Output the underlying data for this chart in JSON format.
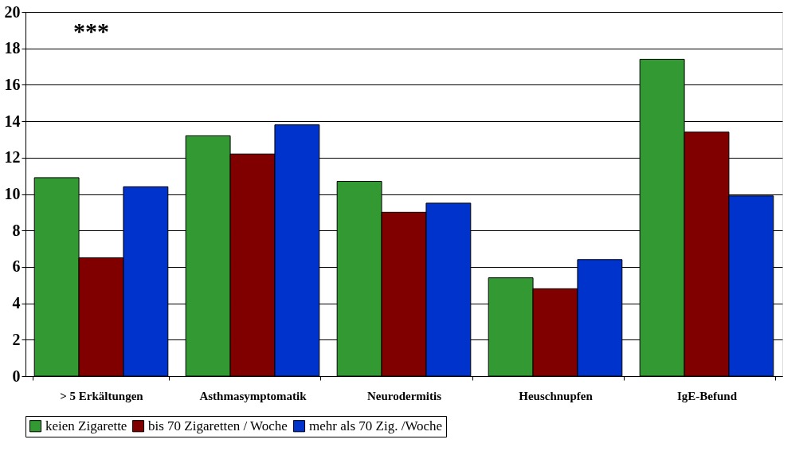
{
  "chart_data": {
    "type": "bar",
    "categories": [
      "> 5 Erkältungen",
      "Asthmasymptomatik",
      "Neurodermitis",
      "Heuschnupfen",
      "IgE-Befund"
    ],
    "series": [
      {
        "name": "keien Zigarette",
        "color": "#339933",
        "values": [
          10.9,
          13.2,
          10.7,
          5.4,
          17.4
        ]
      },
      {
        "name": "bis 70 Zigaretten / Woche",
        "color": "#800000",
        "values": [
          6.5,
          12.2,
          9.0,
          4.8,
          13.4
        ]
      },
      {
        "name": "mehr als 70 Zig. /Woche",
        "color": "#0033cc",
        "values": [
          10.4,
          13.8,
          9.5,
          6.4,
          9.9
        ]
      }
    ],
    "ylim": [
      0,
      20
    ],
    "yticks": [
      0,
      2,
      4,
      6,
      8,
      10,
      12,
      14,
      16,
      18,
      20
    ],
    "grid": "y",
    "legend": "bottom",
    "annotations": [
      "***"
    ]
  }
}
